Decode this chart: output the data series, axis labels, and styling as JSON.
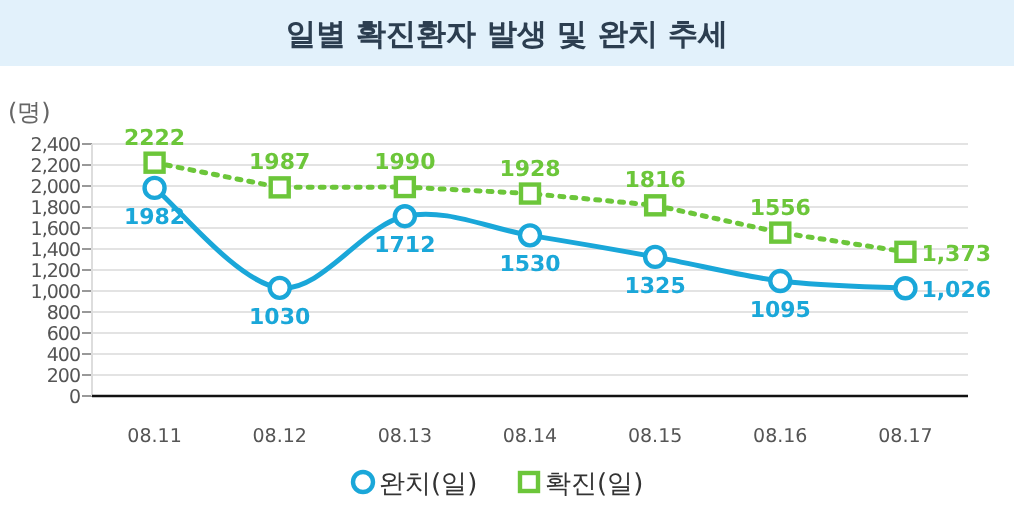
{
  "chart_data": {
    "type": "line",
    "title": "일별 확진환자 발생 및 완치 추세",
    "ylabel": "(명)",
    "categories": [
      "08.11",
      "08.12",
      "08.13",
      "08.14",
      "08.15",
      "08.16",
      "08.17"
    ],
    "series": [
      {
        "name": "완치(일)",
        "color": "#1aa7d9",
        "marker": "circle",
        "line_style": "solid",
        "values": [
          1982,
          1030,
          1712,
          1530,
          1325,
          1095,
          1026
        ],
        "value_labels": [
          "1982",
          "1030",
          "1712",
          "1530",
          "1325",
          "1095",
          "1,026"
        ]
      },
      {
        "name": "확진(일)",
        "color": "#6cc63a",
        "marker": "square",
        "line_style": "dotted",
        "values": [
          2222,
          1987,
          1990,
          1928,
          1816,
          1556,
          1373
        ],
        "value_labels": [
          "2222",
          "1987",
          "1990",
          "1928",
          "1816",
          "1556",
          "1,373"
        ]
      }
    ],
    "ylim": [
      0,
      2400
    ],
    "yticks": [
      0,
      {
        "value": 200,
        "label": "200"
      },
      {
        "value": 400,
        "label": "400"
      },
      {
        "value": 600,
        "label": "600"
      },
      {
        "value": 800,
        "label": "800"
      },
      {
        "value": 1000,
        "label": "1,000"
      },
      {
        "value": 1200,
        "label": "1,200"
      },
      {
        "value": 1400,
        "label": "1,400"
      },
      {
        "value": 1600,
        "label": "1,600"
      },
      {
        "value": 1800,
        "label": "1,800"
      },
      {
        "value": 2000,
        "label": "2,000"
      },
      {
        "value": 2200,
        "label": "2,200"
      },
      {
        "value": 2400,
        "label": "2,400"
      }
    ],
    "grid": "y",
    "legend": "bottom"
  }
}
